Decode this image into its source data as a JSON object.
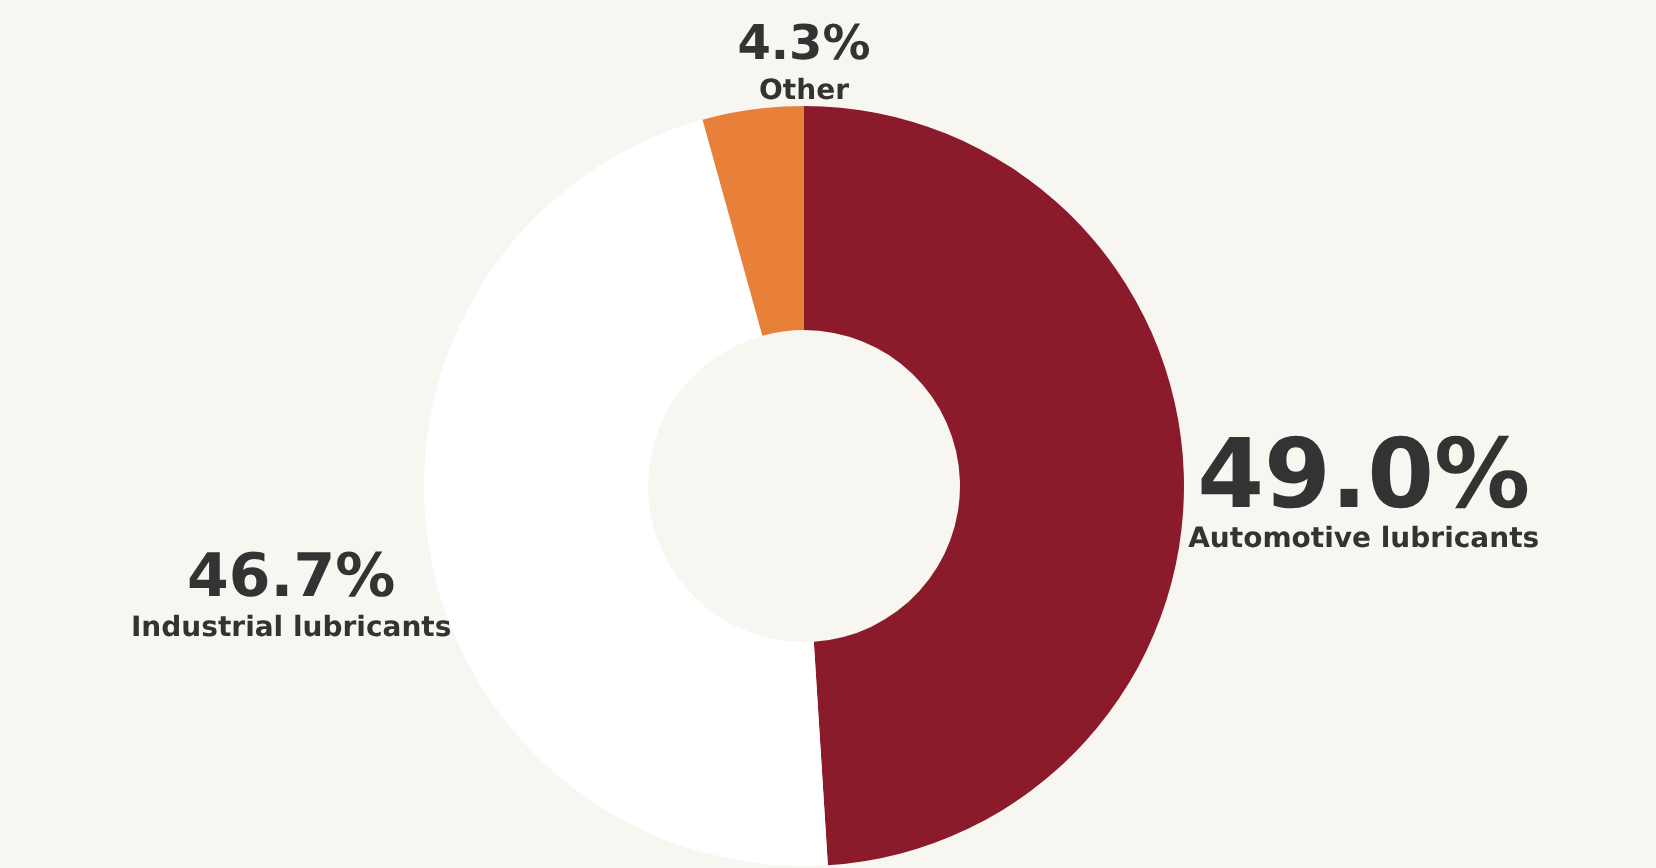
{
  "chart_data": {
    "type": "donut",
    "categories": [
      "Automotive lubricants",
      "Industrial lubricants",
      "Other"
    ],
    "values": [
      49.0,
      46.7,
      4.3
    ],
    "colors": [
      "#8b1a2b",
      "#ffffff",
      "#e8803a"
    ],
    "value_labels": [
      "49.0%",
      "46.7%",
      "4.3%"
    ]
  }
}
